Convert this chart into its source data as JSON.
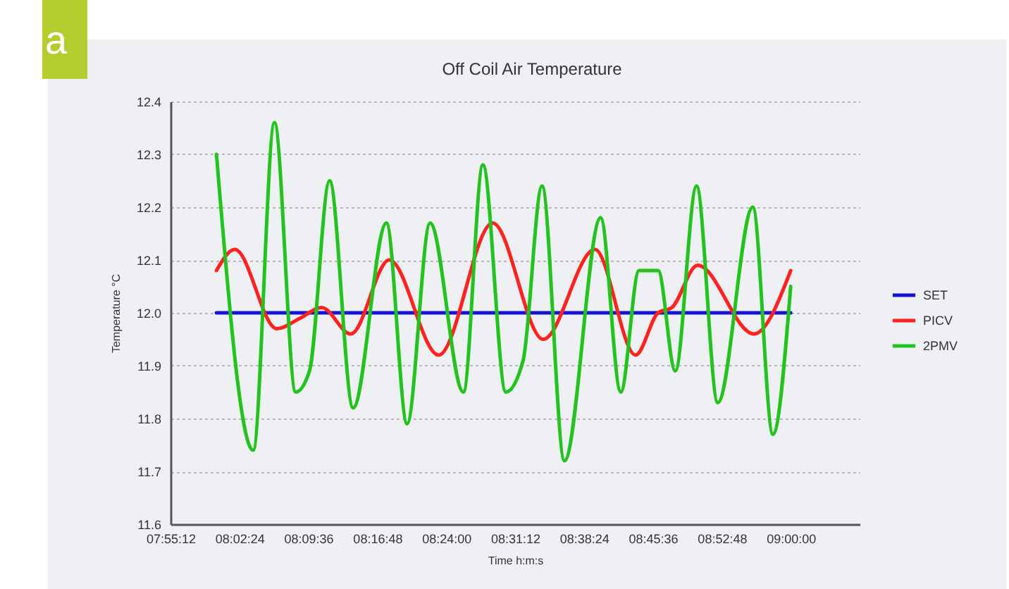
{
  "chart_data": {
    "type": "line",
    "title": "Off Coil Air Temperature",
    "xlabel": "Time h:m:s",
    "ylabel": "Temperature °C",
    "annotations": [
      "a"
    ],
    "xlim": [
      7.92,
      9.12
    ],
    "xticks": [
      {
        "value": 7.92,
        "label": "07:55:12"
      },
      {
        "value": 8.04,
        "label": "08:02:24"
      },
      {
        "value": 8.16,
        "label": "08:09:36"
      },
      {
        "value": 8.28,
        "label": "08:16:48"
      },
      {
        "value": 8.4,
        "label": "08:24:00"
      },
      {
        "value": 8.52,
        "label": "08:31:12"
      },
      {
        "value": 8.64,
        "label": "08:38:24"
      },
      {
        "value": 8.76,
        "label": "08:45:36"
      },
      {
        "value": 8.88,
        "label": "08:52:48"
      },
      {
        "value": 9.0,
        "label": "09:00:00"
      }
    ],
    "ylim": [
      11.6,
      12.4
    ],
    "yticks": [
      11.6,
      11.7,
      11.8,
      11.9,
      {
        "value": 12,
        "label": "12.0"
      },
      12.1,
      12.2,
      12.3,
      12.4
    ],
    "grid": "y",
    "legend": "right",
    "series": [
      {
        "name": "SET",
        "color": "#1414d2",
        "x": [
          8.0,
          9.0
        ],
        "values": [
          12.0,
          12.0
        ]
      },
      {
        "name": "PICV",
        "color": "#ff2020",
        "x": [
          8.0,
          8.032,
          8.105,
          8.146,
          8.183,
          8.234,
          8.301,
          8.387,
          8.481,
          8.569,
          8.659,
          8.73,
          8.769,
          8.793,
          8.838,
          8.936,
          9.0
        ],
        "values": [
          12.08,
          12.12,
          11.97,
          11.99,
          12.01,
          11.96,
          12.1,
          11.92,
          12.17,
          11.95,
          12.12,
          11.92,
          12.0,
          12.01,
          12.09,
          11.96,
          12.08
        ]
      },
      {
        "name": "2PMV",
        "color": "#22c31c",
        "x": [
          8.0,
          8.064,
          8.101,
          8.138,
          8.162,
          8.197,
          8.238,
          8.296,
          8.332,
          8.372,
          8.43,
          8.464,
          8.504,
          8.534,
          8.567,
          8.606,
          8.669,
          8.704,
          8.736,
          8.769,
          8.799,
          8.836,
          8.873,
          8.934,
          8.969,
          9.0
        ],
        "values": [
          12.3,
          11.74,
          12.36,
          11.85,
          11.89,
          12.25,
          11.82,
          12.17,
          11.79,
          12.17,
          11.85,
          12.28,
          11.85,
          11.91,
          12.24,
          11.72,
          12.18,
          11.85,
          12.08,
          12.08,
          11.89,
          12.24,
          11.83,
          12.2,
          11.77,
          12.05
        ]
      }
    ]
  }
}
